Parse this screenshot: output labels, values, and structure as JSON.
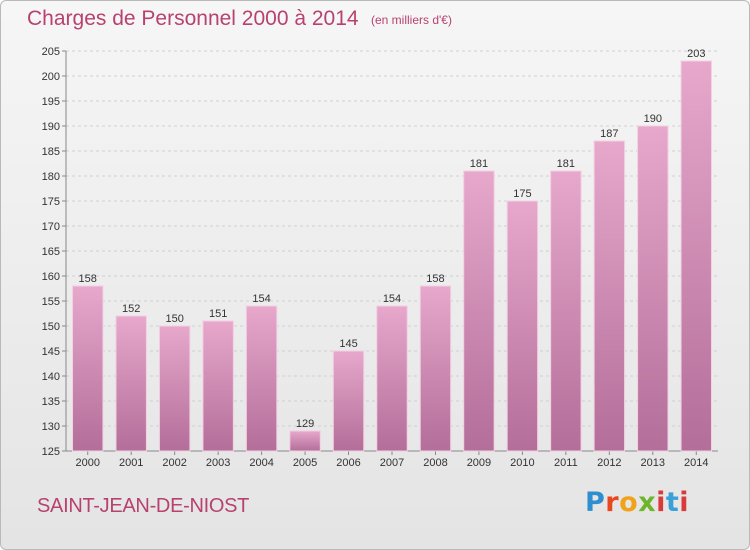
{
  "header": {
    "title": "Charges de Personnel 2000 à 2014",
    "subtitle": "(en milliers d'€)"
  },
  "footer": {
    "place": "SAINT-JEAN-DE-NIOST",
    "logo_text": "Proxiti"
  },
  "colors": {
    "bar_top": "#e7a8cc",
    "bar_bottom": "#b36e99",
    "title": "#b8426f"
  },
  "chart_data": {
    "type": "bar",
    "title": "Charges de Personnel 2000 à 2014",
    "subtitle": "(en milliers d'€)",
    "categories": [
      "2000",
      "2001",
      "2002",
      "2003",
      "2004",
      "2005",
      "2006",
      "2007",
      "2008",
      "2009",
      "2010",
      "2011",
      "2012",
      "2013",
      "2014"
    ],
    "values": [
      158,
      152,
      150,
      151,
      154,
      129,
      145,
      154,
      158,
      181,
      175,
      181,
      187,
      190,
      203
    ],
    "ylim": [
      125,
      205
    ],
    "yticks": [
      125,
      130,
      135,
      140,
      145,
      150,
      155,
      160,
      165,
      170,
      175,
      180,
      185,
      190,
      195,
      200,
      205
    ],
    "grid": true,
    "legend": "none"
  }
}
